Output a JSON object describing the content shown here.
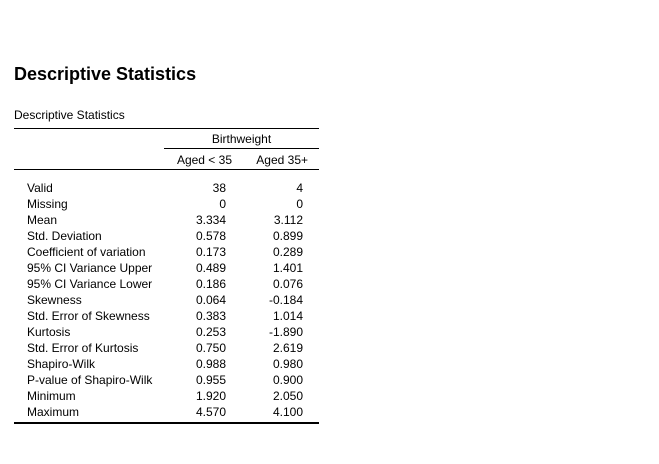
{
  "page": {
    "heading": "Descriptive Statistics",
    "caption": "Descriptive Statistics"
  },
  "table": {
    "group_header": "Birthweight",
    "columns": [
      "Aged < 35",
      "Aged 35+"
    ],
    "rows": [
      {
        "label": "Valid",
        "v1": "38",
        "v2": "4"
      },
      {
        "label": "Missing",
        "v1": "0",
        "v2": "0"
      },
      {
        "label": "Mean",
        "v1": "3.334",
        "v2": "3.112"
      },
      {
        "label": "Std. Deviation",
        "v1": "0.578",
        "v2": "0.899"
      },
      {
        "label": "Coefficient of variation",
        "v1": "0.173",
        "v2": "0.289"
      },
      {
        "label": "95% CI Variance Upper",
        "v1": "0.489",
        "v2": "1.401"
      },
      {
        "label": "95% CI Variance Lower",
        "v1": "0.186",
        "v2": "0.076"
      },
      {
        "label": "Skewness",
        "v1": "0.064",
        "v2": "-0.184"
      },
      {
        "label": "Std. Error of Skewness",
        "v1": "0.383",
        "v2": "1.014"
      },
      {
        "label": "Kurtosis",
        "v1": "0.253",
        "v2": "-1.890"
      },
      {
        "label": "Std. Error of Kurtosis",
        "v1": "0.750",
        "v2": "2.619"
      },
      {
        "label": "Shapiro-Wilk",
        "v1": "0.988",
        "v2": "0.980"
      },
      {
        "label": "P-value of Shapiro-Wilk",
        "v1": "0.955",
        "v2": "0.900"
      },
      {
        "label": "Minimum",
        "v1": "1.920",
        "v2": "2.050"
      },
      {
        "label": "Maximum",
        "v1": "4.570",
        "v2": "4.100"
      }
    ]
  }
}
